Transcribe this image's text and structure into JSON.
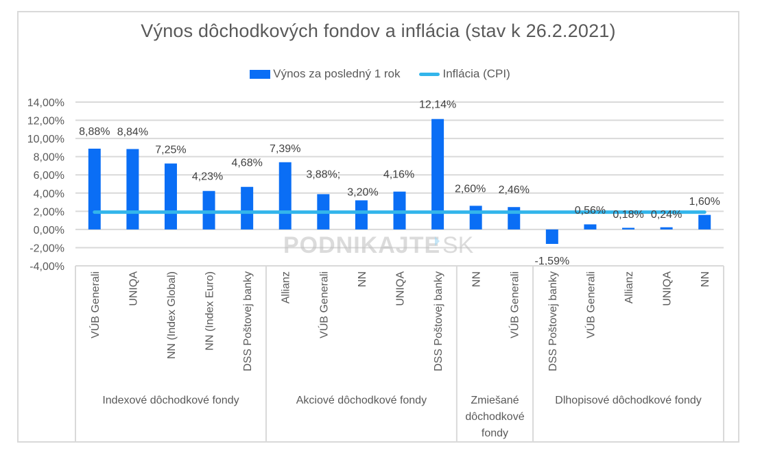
{
  "chart_data": {
    "type": "bar",
    "title": "Výnos dôchodkových fondov a inflácia (stav k 26.2.2021)",
    "xlabel": "",
    "ylabel": "",
    "ylim": [
      -4,
      14
    ],
    "y_tick_step": 2,
    "y_ticks": [
      "-4,00%",
      "-2,00%",
      "0,00%",
      "2,00%",
      "4,00%",
      "6,00%",
      "8,00%",
      "10,00%",
      "12,00%",
      "14,00%"
    ],
    "grid": true,
    "legend_position": "top",
    "legend": [
      {
        "name": "Výnos za posledný 1 rok",
        "kind": "bar",
        "color": "#0A6EF5"
      },
      {
        "name": "Inflácia (CPI)",
        "kind": "line",
        "color": "#33B5EB"
      }
    ],
    "categories": [
      "VÚB Generali",
      "UNIQA",
      "NN (Index Global)",
      "NN (Index Euro)",
      "DSS Poštovej banky",
      "Allianz",
      "VÚB Generali",
      "NN",
      "UNIQA",
      "DSS Poštovej banky",
      "NN",
      "VÚB Generali",
      "DSS Poštovej banky",
      "VÚB Generali",
      "Allianz",
      "UNIQA",
      "NN"
    ],
    "groups": [
      {
        "label": "Indexové dôchodkové fondy",
        "count": 5
      },
      {
        "label": "Akciové dôchodkové fondy",
        "count": 5
      },
      {
        "label": "Zmiešané dôchodkové fondy",
        "lines": [
          "Zmiešané",
          "dôchodkové",
          "fondy"
        ],
        "count": 2
      },
      {
        "label": "Dlhopisové dôchodkové fondy",
        "count": 5
      }
    ],
    "series": [
      {
        "name": "Výnos za posledný 1 rok",
        "type": "bar",
        "values": [
          8.88,
          8.84,
          7.25,
          4.23,
          4.68,
          7.39,
          3.88,
          3.2,
          4.16,
          12.14,
          2.6,
          2.46,
          -1.59,
          0.56,
          0.18,
          0.24,
          1.6
        ],
        "labels": [
          "8,88%",
          "8,84%",
          "7,25%",
          "4,23%",
          "4,68%",
          "7,39%",
          "3,88%;",
          "3,20%",
          "4,16%",
          "12,14%",
          "2,60%",
          "2,46%",
          "-1,59%",
          "0,56%",
          "0,18%",
          "0,24%",
          "1,60%"
        ]
      },
      {
        "name": "Inflácia (CPI)",
        "type": "line",
        "values": [
          1.9,
          1.9,
          1.9,
          1.9,
          1.9,
          1.9,
          1.9,
          1.9,
          1.9,
          1.9,
          1.9,
          1.9,
          1.9,
          1.9,
          1.9,
          1.9,
          1.9
        ]
      }
    ],
    "watermark": {
      "main": "PODNIKAJTE",
      "suffix": "SK"
    }
  }
}
